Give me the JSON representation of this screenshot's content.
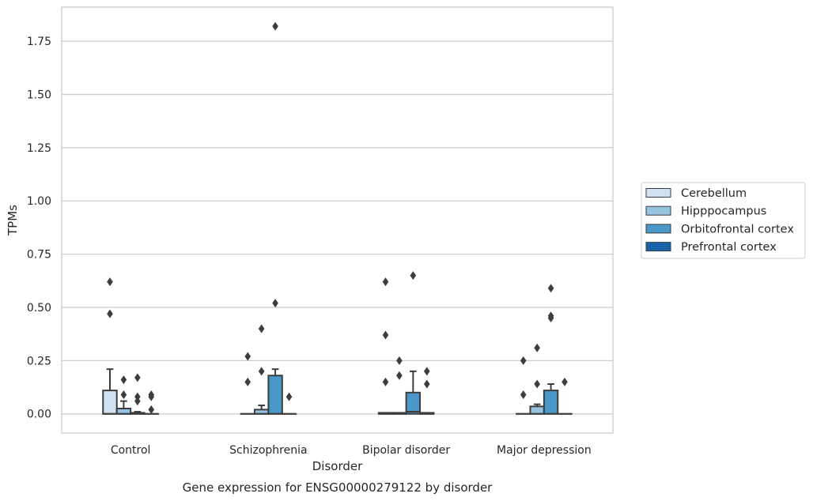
{
  "chart_data": {
    "type": "box",
    "caption": "Gene expression for ENSG00000279122 by disorder",
    "xlabel": "Disorder",
    "ylabel": "TPMs",
    "ylim": [
      -0.09,
      1.91
    ],
    "yticks": [
      "0.00",
      "0.25",
      "0.50",
      "0.75",
      "1.00",
      "1.25",
      "1.50",
      "1.75"
    ],
    "grid": true,
    "legend_position": "right",
    "categories": [
      "Control",
      "Schizophrenia",
      "Bipolar disorder",
      "Major depression"
    ],
    "series": [
      {
        "name": "Cerebellum",
        "color": "#d0e1f2",
        "boxes": [
          {
            "q1": 0.0,
            "median": 0.0,
            "q3": 0.11,
            "whisker_low": 0.0,
            "whisker_high": 0.21,
            "outliers": [
              0.47,
              0.62
            ]
          },
          {
            "q1": 0.0,
            "median": 0.0,
            "q3": 0.0,
            "whisker_low": 0.0,
            "whisker_high": 0.0,
            "outliers": [
              0.15,
              0.27
            ]
          },
          {
            "q1": 0.0,
            "median": 0.0,
            "q3": 0.005,
            "whisker_low": 0.0,
            "whisker_high": 0.005,
            "outliers": [
              0.15,
              0.37,
              0.62
            ]
          },
          {
            "q1": 0.0,
            "median": 0.0,
            "q3": 0.0,
            "whisker_low": 0.0,
            "whisker_high": 0.0,
            "outliers": [
              0.09,
              0.25
            ]
          }
        ]
      },
      {
        "name": "Hipppocampus",
        "color": "#94c4df",
        "boxes": [
          {
            "q1": 0.0,
            "median": 0.0,
            "q3": 0.025,
            "whisker_low": 0.0,
            "whisker_high": 0.06,
            "outliers": [
              0.09,
              0.16
            ]
          },
          {
            "q1": 0.0,
            "median": 0.0,
            "q3": 0.02,
            "whisker_low": 0.0,
            "whisker_high": 0.04,
            "outliers": [
              0.2,
              0.4
            ]
          },
          {
            "q1": 0.0,
            "median": 0.0,
            "q3": 0.005,
            "whisker_low": 0.0,
            "whisker_high": 0.005,
            "outliers": [
              0.18,
              0.25
            ]
          },
          {
            "q1": 0.0,
            "median": 0.0,
            "q3": 0.035,
            "whisker_low": 0.0,
            "whisker_high": 0.045,
            "outliers": [
              0.14,
              0.31
            ]
          }
        ]
      },
      {
        "name": "Orbitofrontal cortex",
        "color": "#4a98c9",
        "boxes": [
          {
            "q1": 0.0,
            "median": 0.0,
            "q3": 0.005,
            "whisker_low": 0.0,
            "whisker_high": 0.01,
            "outliers": [
              0.06,
              0.08,
              0.17
            ]
          },
          {
            "q1": 0.0,
            "median": 0.0,
            "q3": 0.18,
            "whisker_low": 0.0,
            "whisker_high": 0.21,
            "outliers": [
              0.52,
              1.82
            ]
          },
          {
            "q1": 0.0,
            "median": 0.01,
            "q3": 0.1,
            "whisker_low": 0.0,
            "whisker_high": 0.2,
            "outliers": [
              0.65
            ]
          },
          {
            "q1": 0.0,
            "median": 0.0,
            "q3": 0.11,
            "whisker_low": 0.0,
            "whisker_high": 0.14,
            "outliers": [
              0.45,
              0.46,
              0.59
            ]
          }
        ]
      },
      {
        "name": "Prefrontal cortex",
        "color": "#1764ab",
        "boxes": [
          {
            "q1": 0.0,
            "median": 0.0,
            "q3": 0.0,
            "whisker_low": 0.0,
            "whisker_high": 0.0,
            "outliers": [
              0.02,
              0.08,
              0.09
            ]
          },
          {
            "q1": 0.0,
            "median": 0.0,
            "q3": 0.0,
            "whisker_low": 0.0,
            "whisker_high": 0.0,
            "outliers": [
              0.08
            ]
          },
          {
            "q1": 0.0,
            "median": 0.0,
            "q3": 0.005,
            "whisker_low": 0.0,
            "whisker_high": 0.005,
            "outliers": [
              0.14,
              0.2
            ]
          },
          {
            "q1": 0.0,
            "median": 0.0,
            "q3": 0.0,
            "whisker_low": 0.0,
            "whisker_high": 0.0,
            "outliers": [
              0.15
            ]
          }
        ]
      }
    ]
  }
}
